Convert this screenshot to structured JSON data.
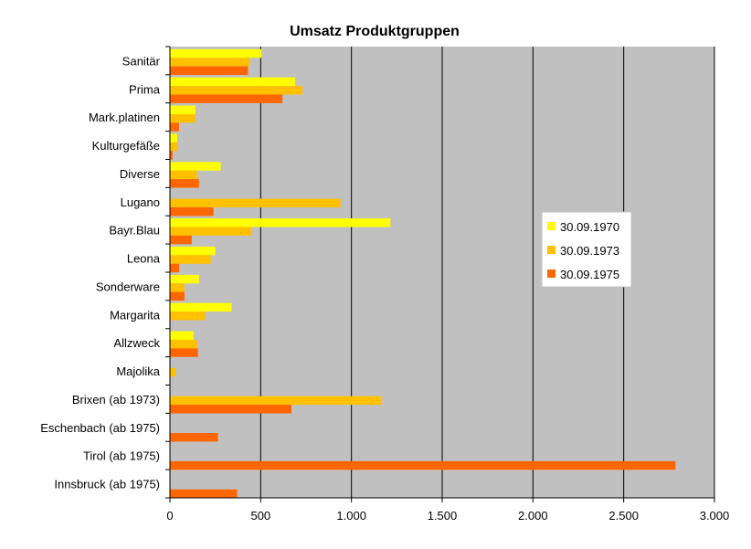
{
  "chart_data": {
    "type": "bar",
    "orientation": "horizontal",
    "title": "Umsatz Produktgruppen",
    "xlabel": "",
    "ylabel": "",
    "xlim": [
      0,
      3000
    ],
    "ticks": [
      0,
      500,
      1000,
      1500,
      2000,
      2500,
      3000
    ],
    "tick_labels": [
      "0",
      "500",
      "1.000",
      "1.500",
      "2.000",
      "2.500",
      "3.000"
    ],
    "grid": "vertical",
    "legend_position": "right",
    "plot_background": "#c0c0c0",
    "categories": [
      "Sanitär",
      "Prima",
      "Mark.platinen",
      "Kulturgefäße",
      "Diverse",
      "Lugano",
      "Bayr.Blau",
      "Leona",
      "Sonderware",
      "Margarita",
      "Allzweck",
      "Majolika",
      "Brixen (ab 1973)",
      "Eschenbach (ab 1975)",
      "Tirol (ab 1975)",
      "Innsbruck (ab 1975)"
    ],
    "series": [
      {
        "name": "30.09.1970",
        "color": "#ffff00",
        "values": [
          505,
          690,
          140,
          40,
          280,
          0,
          1215,
          250,
          160,
          340,
          130,
          0,
          0,
          0,
          0,
          0
        ]
      },
      {
        "name": "30.09.1973",
        "color": "#ffc000",
        "values": [
          440,
          730,
          140,
          40,
          150,
          940,
          450,
          225,
          80,
          195,
          150,
          30,
          1165,
          0,
          0,
          0
        ]
      },
      {
        "name": "30.09.1975",
        "color": "#ff6600",
        "values": [
          430,
          620,
          50,
          15,
          160,
          240,
          120,
          50,
          80,
          0,
          155,
          0,
          670,
          265,
          2785,
          370
        ]
      }
    ]
  }
}
